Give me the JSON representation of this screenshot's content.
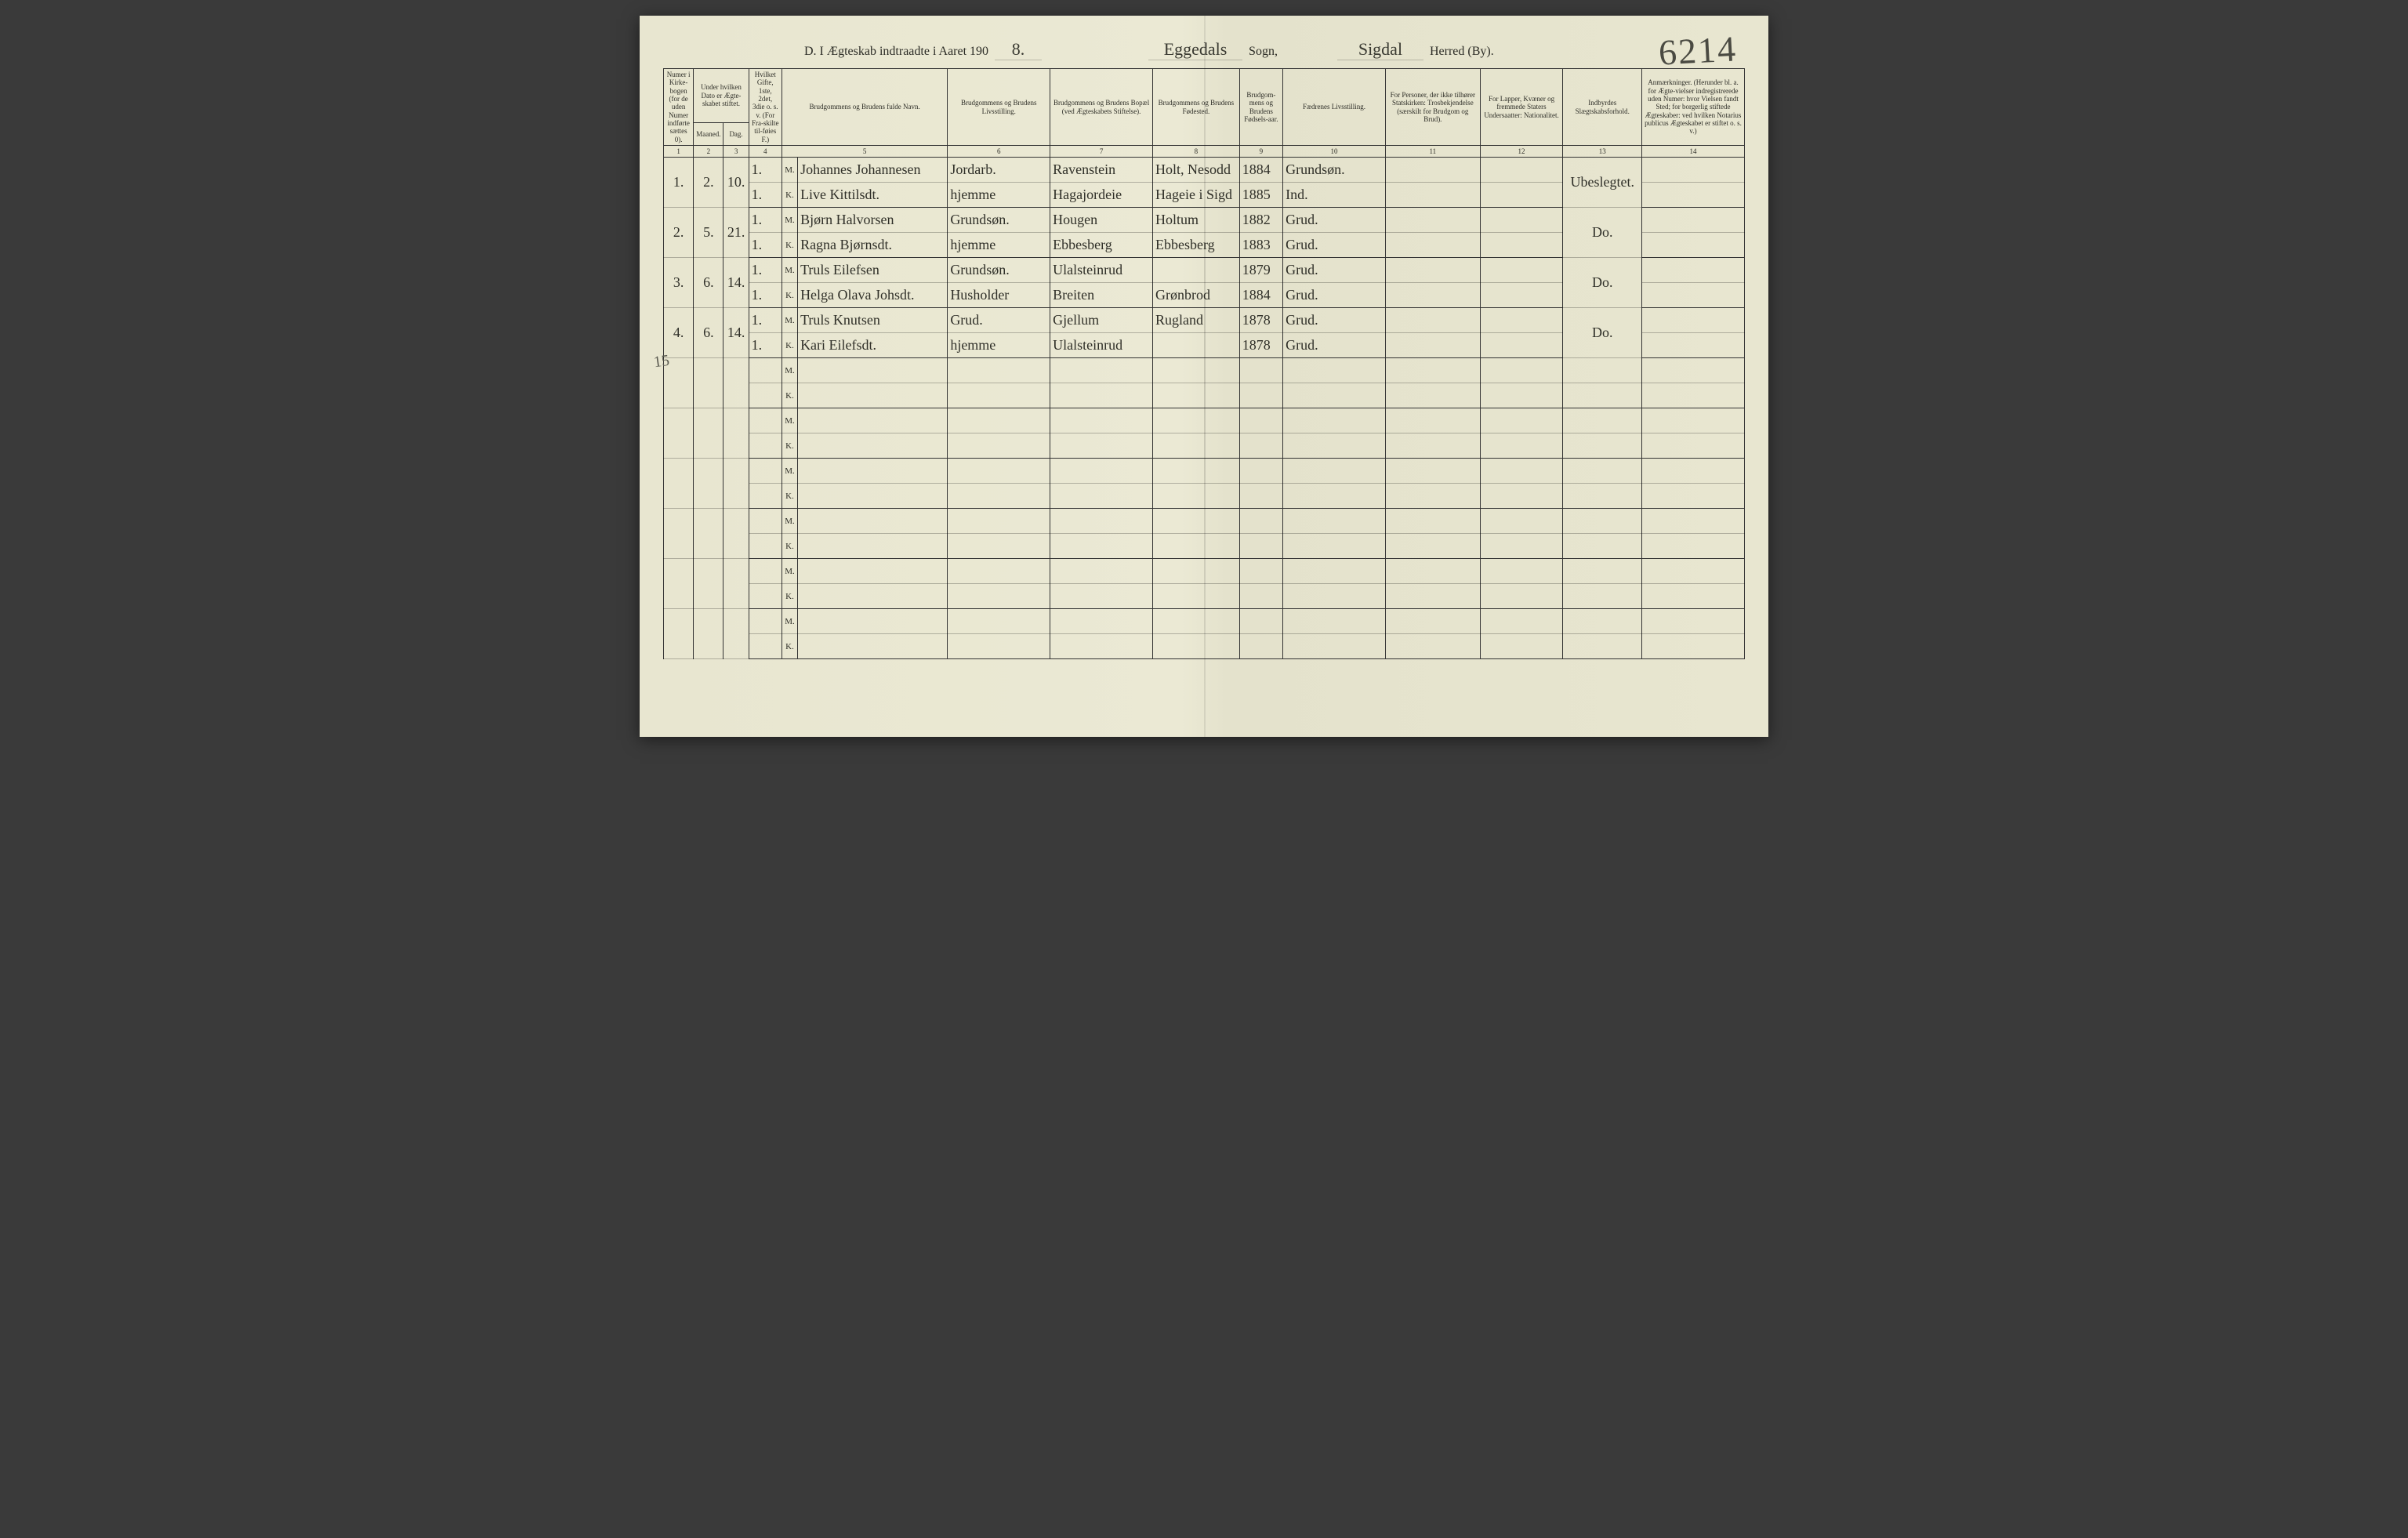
{
  "page_number_handwritten": "6214",
  "margin_note": "15",
  "title": {
    "prefix": "D.  I Ægteskab indtraadte i Aaret 190",
    "year_suffix": "8.",
    "sogn_value": "Eggedals",
    "sogn_label": "Sogn,",
    "herred_value": "Sigdal",
    "herred_label": "Herred (By)."
  },
  "headers": {
    "c1": "Numer i Kirke-bogen (for de uden Numer indførte sættes 0).",
    "c2": "Under hvilken Dato er Ægte-skabet stiftet.",
    "c2a": "Maaned.",
    "c2b": "Dag.",
    "c3": "Hvilket Gifte, 1ste, 2det, 3die o. s. v. (For Fra-skilte til-føies F.)",
    "c4": "Brudgommens og Brudens fulde Navn.",
    "c5": "Brudgommens og Brudens Livsstilling.",
    "c6": "Brudgommens og Brudens Bopæl (ved Ægteskabets Stiftelse).",
    "c7": "Brudgommens og Brudens Fødested.",
    "c8": "Brudgom-mens og Brudens Fødsels-aar.",
    "c9": "Fædrenes Livsstilling.",
    "c10": "For Personer, der ikke tilhører Statskirken: Trosbekjendelse (særskilt for Brudgom og Brud).",
    "c11": "For Lapper, Kvæner og fremmede Staters Undersaatter: Nationalitet.",
    "c12": "Indbyrdes Slægtskabsforhold.",
    "c13": "Anmærkninger. (Herunder bl. a. for Ægte-vielser indregistrerede uden Numer: hvor Vielsen fandt Sted; for borgerlig stiftede Ægteskaber: ved hvilken Notarius publicus Ægteskabet er stiftet o. s. v.)"
  },
  "colnums": [
    "1",
    "2",
    "3",
    "4",
    "5",
    "6",
    "7",
    "8",
    "9",
    "10",
    "11",
    "12",
    "13",
    "14"
  ],
  "entries": [
    {
      "num": "1.",
      "maaned": "2.",
      "dag": "10.",
      "m": {
        "gifte": "1.",
        "navn": "Johannes Johannesen",
        "stilling": "Jordarb.",
        "bopael": "Ravenstein",
        "fodested": "Holt, Nesodd",
        "aar": "1884",
        "faedre": "Grundsøn."
      },
      "k": {
        "gifte": "1.",
        "navn": "Live Kittilsdt.",
        "stilling": "hjemme",
        "bopael": "Hagajordeie",
        "fodested": "Hageie i Sigd",
        "aar": "1885",
        "faedre": "Ind."
      },
      "col13": "Ubeslegtet."
    },
    {
      "num": "2.",
      "maaned": "5.",
      "dag": "21.",
      "m": {
        "gifte": "1.",
        "navn": "Bjørn Halvorsen",
        "stilling": "Grundsøn.",
        "bopael": "Hougen",
        "fodested": "Holtum",
        "aar": "1882",
        "faedre": "Grud."
      },
      "k": {
        "gifte": "1.",
        "navn": "Ragna Bjørnsdt.",
        "stilling": "hjemme",
        "bopael": "Ebbesberg",
        "fodested": "Ebbesberg",
        "aar": "1883",
        "faedre": "Grud."
      },
      "col13": "Do."
    },
    {
      "num": "3.",
      "maaned": "6.",
      "dag": "14.",
      "m": {
        "gifte": "1.",
        "navn": "Truls Eilefsen",
        "stilling": "Grundsøn.",
        "bopael": "Ulalsteinrud",
        "fodested": "",
        "aar": "1879",
        "faedre": "Grud."
      },
      "k": {
        "gifte": "1.",
        "navn": "Helga Olava Johsdt.",
        "stilling": "Husholder",
        "bopael": "Breiten",
        "fodested": "Grønbrod",
        "aar": "1884",
        "faedre": "Grud."
      },
      "col13": "Do."
    },
    {
      "num": "4.",
      "maaned": "6.",
      "dag": "14.",
      "m": {
        "gifte": "1.",
        "navn": "Truls Knutsen",
        "stilling": "Grud.",
        "bopael": "Gjellum",
        "fodested": "Rugland",
        "aar": "1878",
        "faedre": "Grud."
      },
      "k": {
        "gifte": "1.",
        "navn": "Kari Eilefsdt.",
        "stilling": "hjemme",
        "bopael": "Ulalsteinrud",
        "fodested": "",
        "aar": "1878",
        "faedre": "Grud."
      },
      "col13": "Do."
    }
  ],
  "empty_pairs": 6,
  "colors": {
    "paper": "#e8e6d0",
    "ink": "#2c2c26",
    "rule": "#333333"
  }
}
